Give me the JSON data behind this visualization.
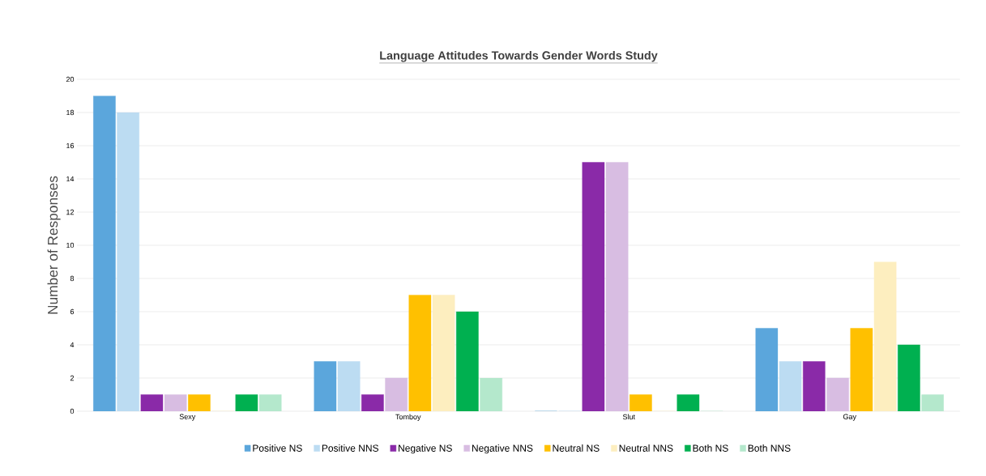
{
  "chart_data": {
    "type": "bar",
    "title": "Language Attitudes Towards Gender Words Study",
    "ylabel": "Number of Responses",
    "categories": [
      "Sexy",
      "Tomboy",
      "Slut",
      "Gay"
    ],
    "series": [
      {
        "name": "Positive NS",
        "color": "#5ba6dc",
        "values": [
          19,
          3,
          0,
          5
        ]
      },
      {
        "name": "Positive NNS",
        "color": "#bcdcf2",
        "values": [
          18,
          3,
          0,
          3
        ]
      },
      {
        "name": "Negative NS",
        "color": "#8a2aa8",
        "values": [
          1,
          1,
          15,
          3
        ]
      },
      {
        "name": "Negative NNS",
        "color": "#d8bde2",
        "values": [
          1,
          2,
          15,
          2
        ]
      },
      {
        "name": "Neutral NS",
        "color": "#ffc000",
        "values": [
          1,
          7,
          1,
          5
        ]
      },
      {
        "name": "Neutral NNS",
        "color": "#fdeebf",
        "values": [
          0,
          7,
          0,
          9
        ]
      },
      {
        "name": "Both NS",
        "color": "#00b050",
        "values": [
          1,
          6,
          1,
          4
        ]
      },
      {
        "name": "Both NNS",
        "color": "#b4e8cc",
        "values": [
          1,
          2,
          0,
          1
        ]
      }
    ],
    "ylim": [
      0,
      20
    ],
    "yticks": [
      0,
      2,
      4,
      6,
      8,
      10,
      12,
      14,
      16,
      18,
      20
    ],
    "grid": "y",
    "legend": "bottom"
  }
}
